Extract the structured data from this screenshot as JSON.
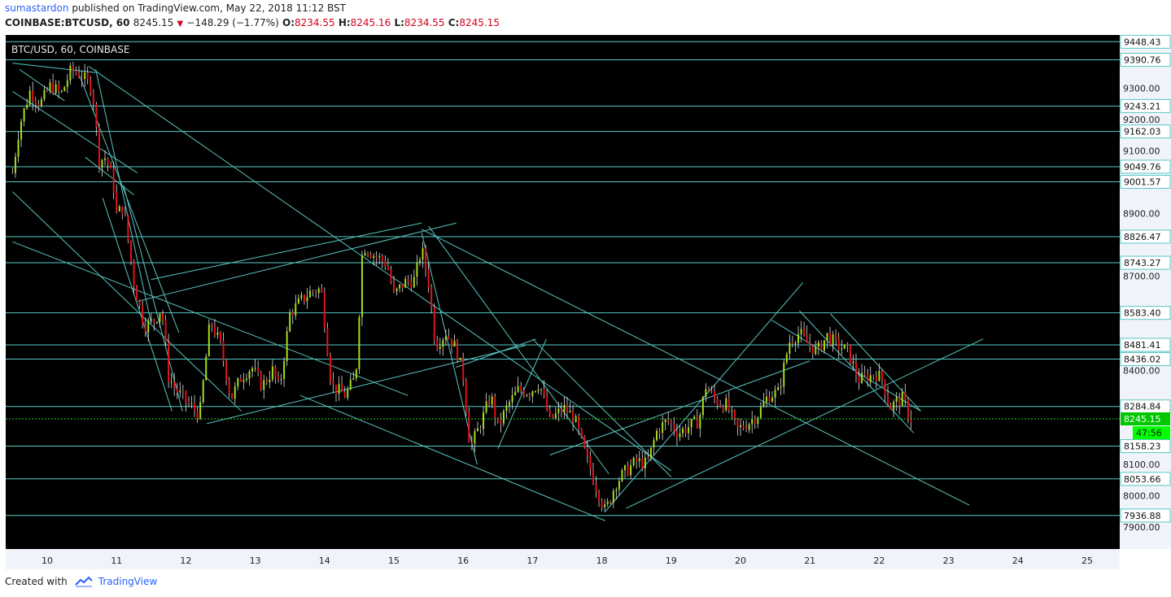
{
  "header": {
    "user": "sumastardon",
    "published": "published on TradingView.com, May 22, 2018 11:12 BST",
    "symbol": "COINBASE:BTCUSD, 60",
    "last": "8245.15",
    "change": "−148.29 (−1.77%)",
    "o_label": "O:",
    "o": "8234.55",
    "h_label": "H:",
    "h": "8245.16",
    "l_label": "L:",
    "l": "8234.55",
    "c_label": "C:",
    "c": "8245.15"
  },
  "footer": {
    "created": "Created with",
    "brand": "TradingView"
  },
  "colors": {
    "background": "#000000",
    "up": "#a8e21a",
    "down": "#e8121a",
    "wick": "#e0e0e0",
    "lines": "#58c7c3",
    "price_line": "#2dd12d",
    "axis": "#f0f3fa"
  },
  "chart_data": {
    "type": "candlestick",
    "legend": "BTC/USD, 60, COINBASE",
    "ylim": [
      7830,
      9470
    ],
    "price_ticks": [
      7900,
      8000,
      8100,
      8400,
      8700,
      8900,
      9100,
      9200,
      9300
    ],
    "x_ticks": [
      "10",
      "11",
      "12",
      "13",
      "14",
      "15",
      "16",
      "17",
      "18",
      "19",
      "20",
      "21",
      "22",
      "23",
      "24",
      "25"
    ],
    "levels": [
      9448.43,
      9390.76,
      9243.21,
      9162.03,
      9049.76,
      9001.57,
      8826.47,
      8743.27,
      8583.4,
      8481.41,
      8436.02,
      8284.84,
      8158.23,
      8053.66,
      7936.88
    ],
    "current_price": 8245.15,
    "countdown": "47:56",
    "path_points": [
      [
        9.5,
        9030
      ],
      [
        9.6,
        9180
      ],
      [
        9.75,
        9290
      ],
      [
        9.9,
        9250
      ],
      [
        10.05,
        9310
      ],
      [
        10.2,
        9280
      ],
      [
        10.35,
        9360
      ],
      [
        10.5,
        9340
      ],
      [
        10.65,
        9300
      ],
      [
        10.75,
        9070
      ],
      [
        10.85,
        9080
      ],
      [
        10.95,
        9000
      ],
      [
        11.0,
        8900
      ],
      [
        11.1,
        8920
      ],
      [
        11.25,
        8680
      ],
      [
        11.4,
        8540
      ],
      [
        11.55,
        8560
      ],
      [
        11.65,
        8600
      ],
      [
        11.75,
        8380
      ],
      [
        11.85,
        8340
      ],
      [
        12.0,
        8300
      ],
      [
        12.2,
        8260
      ],
      [
        12.35,
        8560
      ],
      [
        12.5,
        8480
      ],
      [
        12.65,
        8310
      ],
      [
        12.8,
        8380
      ],
      [
        12.95,
        8410
      ],
      [
        13.1,
        8350
      ],
      [
        13.25,
        8400
      ],
      [
        13.35,
        8340
      ],
      [
        13.5,
        8580
      ],
      [
        13.65,
        8620
      ],
      [
        13.8,
        8650
      ],
      [
        13.95,
        8660
      ],
      [
        14.1,
        8350
      ],
      [
        14.3,
        8320
      ],
      [
        14.45,
        8380
      ],
      [
        14.55,
        8800
      ],
      [
        14.7,
        8770
      ],
      [
        14.9,
        8740
      ],
      [
        15.0,
        8640
      ],
      [
        15.15,
        8680
      ],
      [
        15.3,
        8690
      ],
      [
        15.4,
        8790
      ],
      [
        15.5,
        8680
      ],
      [
        15.6,
        8480
      ],
      [
        15.75,
        8520
      ],
      [
        15.9,
        8470
      ],
      [
        16.0,
        8380
      ],
      [
        16.1,
        8150
      ],
      [
        16.25,
        8230
      ],
      [
        16.4,
        8320
      ],
      [
        16.5,
        8220
      ],
      [
        16.65,
        8290
      ],
      [
        16.8,
        8340
      ],
      [
        16.95,
        8330
      ],
      [
        17.1,
        8360
      ],
      [
        17.25,
        8240
      ],
      [
        17.45,
        8280
      ],
      [
        17.6,
        8250
      ],
      [
        17.75,
        8140
      ],
      [
        17.9,
        8040
      ],
      [
        18.05,
        7950
      ],
      [
        18.2,
        8040
      ],
      [
        18.35,
        8080
      ],
      [
        18.5,
        8110
      ],
      [
        18.65,
        8100
      ],
      [
        18.8,
        8210
      ],
      [
        18.95,
        8240
      ],
      [
        19.1,
        8200
      ],
      [
        19.25,
        8220
      ],
      [
        19.4,
        8240
      ],
      [
        19.5,
        8350
      ],
      [
        19.65,
        8300
      ],
      [
        19.8,
        8290
      ],
      [
        19.95,
        8210
      ],
      [
        20.1,
        8230
      ],
      [
        20.25,
        8260
      ],
      [
        20.4,
        8320
      ],
      [
        20.55,
        8330
      ],
      [
        20.7,
        8490
      ],
      [
        20.85,
        8520
      ],
      [
        20.95,
        8490
      ],
      [
        21.1,
        8460
      ],
      [
        21.25,
        8510
      ],
      [
        21.4,
        8480
      ],
      [
        21.55,
        8460
      ],
      [
        21.7,
        8370
      ],
      [
        21.85,
        8380
      ],
      [
        21.95,
        8390
      ],
      [
        22.05,
        8370
      ],
      [
        22.15,
        8280
      ],
      [
        22.25,
        8300
      ],
      [
        22.35,
        8310
      ],
      [
        22.42,
        8260
      ],
      [
        22.45,
        8245
      ]
    ],
    "trendlines": [
      [
        [
          9.5,
          9380
        ],
        [
          10.7,
          9350
        ]
      ],
      [
        [
          9.5,
          9290
        ],
        [
          11.3,
          9030
        ]
      ],
      [
        [
          9.6,
          9360
        ],
        [
          10.25,
          9260
        ]
      ],
      [
        [
          10.45,
          9350
        ],
        [
          11.9,
          8520
        ]
      ],
      [
        [
          10.7,
          9360
        ],
        [
          11.5,
          8550
        ]
      ],
      [
        [
          10.55,
          9080
        ],
        [
          11.25,
          8960
        ]
      ],
      [
        [
          10.8,
          8950
        ],
        [
          11.8,
          8270
        ]
      ],
      [
        [
          11.1,
          8990
        ],
        [
          11.95,
          8270
        ]
      ],
      [
        [
          9.5,
          8970
        ],
        [
          12.8,
          8270
        ]
      ],
      [
        [
          9.5,
          8810
        ],
        [
          15.2,
          8320
        ]
      ],
      [
        [
          11.3,
          8620
        ],
        [
          15.9,
          8870
        ]
      ],
      [
        [
          12.3,
          8230
        ],
        [
          16.9,
          8480
        ]
      ],
      [
        [
          11.5,
          8690
        ],
        [
          15.4,
          8870
        ]
      ],
      [
        [
          10.6,
          9370
        ],
        [
          19.0,
          8080
        ]
      ],
      [
        [
          15.4,
          8850
        ],
        [
          23.3,
          7970
        ]
      ],
      [
        [
          15.5,
          8860
        ],
        [
          18.1,
          8070
        ]
      ],
      [
        [
          15.4,
          8840
        ],
        [
          16.2,
          8100
        ]
      ],
      [
        [
          13.65,
          8320
        ],
        [
          18.05,
          7920
        ]
      ],
      [
        [
          15.9,
          8410
        ],
        [
          17.05,
          8500
        ]
      ],
      [
        [
          16.5,
          8150
        ],
        [
          17.2,
          8500
        ]
      ],
      [
        [
          17.0,
          8500
        ],
        [
          19.0,
          8060
        ]
      ],
      [
        [
          18.05,
          7950
        ],
        [
          20.9,
          8680
        ]
      ],
      [
        [
          17.25,
          8130
        ],
        [
          21.0,
          8430
        ]
      ],
      [
        [
          18.35,
          7960
        ],
        [
          23.5,
          8500
        ]
      ],
      [
        [
          20.45,
          8560
        ],
        [
          22.6,
          8270
        ]
      ],
      [
        [
          20.85,
          8590
        ],
        [
          22.5,
          8200
        ]
      ],
      [
        [
          21.3,
          8580
        ],
        [
          22.6,
          8270
        ]
      ]
    ]
  }
}
